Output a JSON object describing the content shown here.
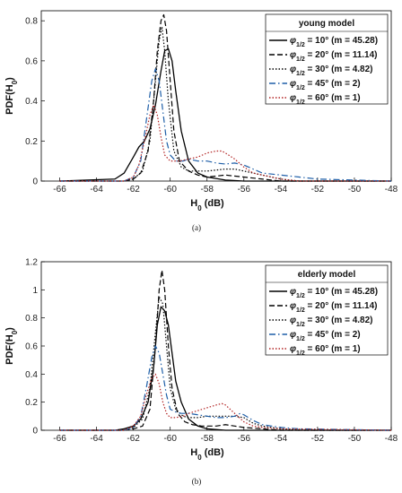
{
  "chart_data": [
    {
      "type": "line",
      "panel": "a",
      "caption": "(a)",
      "xlabel": "H0 (dB)",
      "ylabel": "PDF(H0)",
      "xlim": [
        -67,
        -48
      ],
      "ylim": [
        0,
        0.85
      ],
      "xticks": [
        -66,
        -64,
        -62,
        -60,
        -58,
        -56,
        -54,
        -52,
        -50,
        -48
      ],
      "yticks": [
        0,
        0.2,
        0.4,
        0.6,
        0.8
      ],
      "grid": false,
      "legend_position": "top-right",
      "legend_title": "young model",
      "series": [
        {
          "name": "φ1/2 = 10° (m = 45.28)",
          "color": "#000000",
          "dash": "solid",
          "x": [
            -66,
            -63,
            -62.5,
            -62,
            -61.7,
            -61.4,
            -61.1,
            -60.8,
            -60.5,
            -60.3,
            -60.1,
            -59.9,
            -59.7,
            -59.4,
            -59,
            -58.5,
            -58,
            -57,
            -56,
            -55,
            -54,
            -48
          ],
          "y": [
            0,
            0.01,
            0.04,
            0.12,
            0.17,
            0.2,
            0.26,
            0.38,
            0.55,
            0.65,
            0.66,
            0.6,
            0.45,
            0.25,
            0.1,
            0.04,
            0.02,
            0.005,
            0,
            0,
            0,
            0
          ]
        },
        {
          "name": "φ1/2 = 20° (m = 11.14)",
          "color": "#000000",
          "dash": "dash",
          "x": [
            -66,
            -62.5,
            -62,
            -61.6,
            -61.2,
            -60.9,
            -60.7,
            -60.5,
            -60.35,
            -60.2,
            -60,
            -59.8,
            -59.5,
            -59,
            -58.5,
            -58,
            -57.5,
            -57,
            -56,
            -55,
            -54,
            -48
          ],
          "y": [
            0,
            0,
            0.01,
            0.04,
            0.15,
            0.4,
            0.65,
            0.8,
            0.83,
            0.75,
            0.5,
            0.25,
            0.1,
            0.05,
            0.03,
            0.02,
            0.025,
            0.03,
            0.02,
            0.01,
            0,
            0
          ]
        },
        {
          "name": "φ1/2 = 30° (m = 4.82)",
          "color": "#000000",
          "dash": "dot",
          "x": [
            -66,
            -62.5,
            -62,
            -61.5,
            -61.1,
            -60.8,
            -60.6,
            -60.45,
            -60.3,
            -60.1,
            -59.8,
            -59.4,
            -59,
            -58.5,
            -58,
            -57.5,
            -57,
            -56.5,
            -56,
            -55,
            -54,
            -53,
            -48
          ],
          "y": [
            0,
            0,
            0.01,
            0.05,
            0.2,
            0.5,
            0.7,
            0.77,
            0.65,
            0.4,
            0.15,
            0.07,
            0.05,
            0.05,
            0.05,
            0.055,
            0.06,
            0.06,
            0.05,
            0.03,
            0.01,
            0,
            0
          ]
        },
        {
          "name": "φ1/2 = 45° (m = 2)",
          "color": "#1f5fa8",
          "dash": "dashdot",
          "x": [
            -66,
            -62.5,
            -62,
            -61.6,
            -61.3,
            -61,
            -60.8,
            -60.6,
            -60.4,
            -60.2,
            -60,
            -59.7,
            -59.3,
            -59,
            -58.5,
            -58,
            -57.5,
            -57,
            -56.5,
            -56,
            -55,
            -54,
            -53,
            -52,
            -48
          ],
          "y": [
            0,
            0,
            0.02,
            0.1,
            0.3,
            0.5,
            0.56,
            0.5,
            0.35,
            0.2,
            0.13,
            0.1,
            0.1,
            0.11,
            0.1,
            0.1,
            0.09,
            0.085,
            0.09,
            0.08,
            0.04,
            0.03,
            0.02,
            0.01,
            0
          ]
        },
        {
          "name": "φ1/2 = 60° (m = 1)",
          "color": "#b22222",
          "dash": "dot",
          "x": [
            -66,
            -62.5,
            -62,
            -61.7,
            -61.4,
            -61.1,
            -60.9,
            -60.7,
            -60.5,
            -60.3,
            -60,
            -59.5,
            -59,
            -58.5,
            -58,
            -57.5,
            -57.2,
            -57,
            -56.5,
            -56,
            -55.5,
            -55,
            -54,
            -53,
            -48
          ],
          "y": [
            0,
            0,
            0.02,
            0.08,
            0.2,
            0.33,
            0.38,
            0.33,
            0.22,
            0.13,
            0.1,
            0.1,
            0.11,
            0.12,
            0.14,
            0.15,
            0.15,
            0.14,
            0.11,
            0.07,
            0.04,
            0.03,
            0.01,
            0,
            0
          ]
        }
      ]
    },
    {
      "type": "line",
      "panel": "b",
      "caption": "(b)",
      "xlabel": "H0 (dB)",
      "ylabel": "PDF(H0)",
      "xlim": [
        -67,
        -48
      ],
      "ylim": [
        0,
        1.2
      ],
      "xticks": [
        -66,
        -64,
        -62,
        -60,
        -58,
        -56,
        -54,
        -52,
        -50,
        -48
      ],
      "yticks": [
        0,
        0.2,
        0.4,
        0.6,
        0.8,
        1,
        1.2
      ],
      "grid": false,
      "legend_position": "top-right",
      "legend_title": "elderly model",
      "series": [
        {
          "name": "φ1/2 = 10° (m = 45.28)",
          "color": "#000000",
          "dash": "solid",
          "x": [
            -66,
            -63,
            -62.5,
            -62,
            -61.6,
            -61.2,
            -60.9,
            -60.7,
            -60.5,
            -60.3,
            -60.1,
            -59.9,
            -59.7,
            -59.4,
            -59,
            -58.5,
            -58,
            -57,
            -56,
            -48
          ],
          "y": [
            0,
            0,
            0.01,
            0.03,
            0.08,
            0.2,
            0.45,
            0.75,
            0.88,
            0.85,
            0.75,
            0.55,
            0.35,
            0.2,
            0.08,
            0.03,
            0.01,
            0,
            0,
            0
          ]
        },
        {
          "name": "φ1/2 = 20° (m = 11.14)",
          "color": "#000000",
          "dash": "dash",
          "x": [
            -66,
            -62.5,
            -62,
            -61.5,
            -61.1,
            -60.8,
            -60.6,
            -60.45,
            -60.3,
            -60.1,
            -59.9,
            -59.6,
            -59.2,
            -58.8,
            -58.3,
            -58,
            -57.5,
            -57,
            -56.5,
            -56,
            -55,
            -54,
            -48
          ],
          "y": [
            0,
            0,
            0.01,
            0.03,
            0.15,
            0.6,
            1.0,
            1.14,
            1.0,
            0.6,
            0.3,
            0.12,
            0.06,
            0.04,
            0.03,
            0.03,
            0.03,
            0.04,
            0.03,
            0.02,
            0.01,
            0,
            0
          ]
        },
        {
          "name": "φ1/2 = 30° (m = 4.82)",
          "color": "#000000",
          "dash": "dot",
          "x": [
            -66,
            -62.5,
            -62,
            -61.5,
            -61.1,
            -60.8,
            -60.6,
            -60.4,
            -60.2,
            -60,
            -59.7,
            -59.3,
            -59,
            -58.5,
            -58,
            -57.5,
            -57,
            -56.5,
            -56,
            -55.5,
            -55,
            -54,
            -53,
            -48
          ],
          "y": [
            0,
            0,
            0.02,
            0.08,
            0.3,
            0.7,
            0.95,
            0.9,
            0.6,
            0.3,
            0.15,
            0.1,
            0.09,
            0.09,
            0.1,
            0.1,
            0.1,
            0.1,
            0.09,
            0.05,
            0.03,
            0.01,
            0,
            0
          ]
        },
        {
          "name": "φ1/2 = 45° (m = 2)",
          "color": "#1f5fa8",
          "dash": "dashdot",
          "x": [
            -66,
            -62.5,
            -62,
            -61.6,
            -61.3,
            -61,
            -60.8,
            -60.6,
            -60.4,
            -60.2,
            -60,
            -59.7,
            -59.4,
            -59,
            -58.5,
            -58,
            -57.5,
            -57,
            -56.5,
            -56.2,
            -56,
            -55.5,
            -55,
            -54,
            -53,
            -48
          ],
          "y": [
            0,
            0,
            0.02,
            0.1,
            0.3,
            0.52,
            0.6,
            0.55,
            0.4,
            0.25,
            0.15,
            0.13,
            0.12,
            0.12,
            0.11,
            0.1,
            0.09,
            0.09,
            0.1,
            0.12,
            0.11,
            0.07,
            0.04,
            0.02,
            0.01,
            0
          ]
        },
        {
          "name": "φ1/2 = 60° (m = 1)",
          "color": "#b22222",
          "dash": "dot",
          "x": [
            -66,
            -62.5,
            -62,
            -61.6,
            -61.3,
            -61,
            -60.8,
            -60.6,
            -60.4,
            -60.2,
            -60,
            -59.7,
            -59.3,
            -59,
            -58.5,
            -58,
            -57.5,
            -57.2,
            -57,
            -56.5,
            -56,
            -55.5,
            -55,
            -54,
            -48
          ],
          "y": [
            0,
            0,
            0.03,
            0.1,
            0.25,
            0.37,
            0.4,
            0.33,
            0.2,
            0.12,
            0.09,
            0.09,
            0.1,
            0.12,
            0.14,
            0.16,
            0.18,
            0.19,
            0.18,
            0.12,
            0.06,
            0.03,
            0.02,
            0.01,
            0
          ]
        }
      ]
    }
  ]
}
